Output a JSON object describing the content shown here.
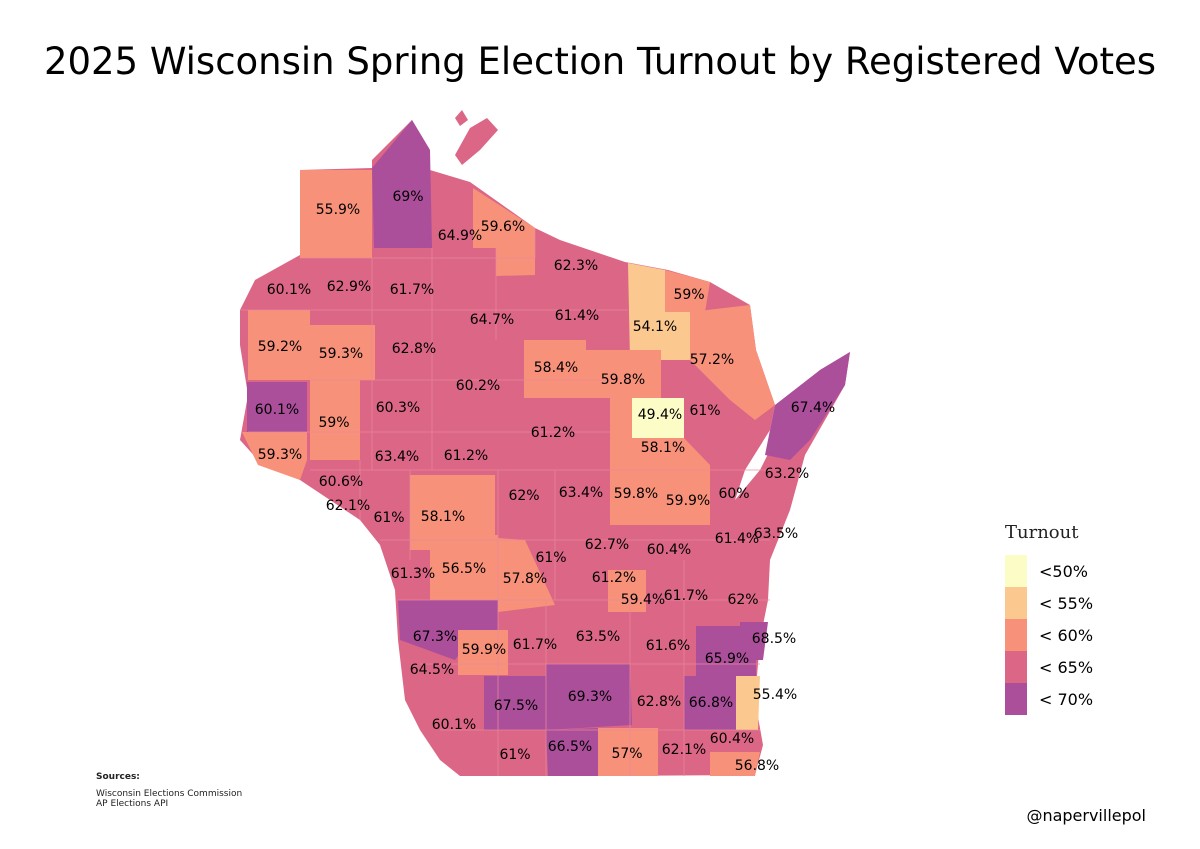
{
  "title": "2025 Wisconsin Spring Election Turnout by Registered Votes",
  "colors": {
    "lt50": "#fcfcc6",
    "lt55": "#fbc98f",
    "lt60": "#f7917a",
    "lt65": "#db6686",
    "lt70": "#ab4f9b"
  },
  "legend": {
    "title": "Turnout",
    "items": [
      {
        "label": "<50%",
        "color": "#fcfcc6"
      },
      {
        "label": "< 55%",
        "color": "#fbc98f"
      },
      {
        "label": "< 60%",
        "color": "#f7917a"
      },
      {
        "label": "< 65%",
        "color": "#db6686"
      },
      {
        "label": "< 70%",
        "color": "#ab4f9b"
      }
    ]
  },
  "counties": [
    {
      "label": "55.9%",
      "value": 55.9
    },
    {
      "label": "69%",
      "value": 69.0
    },
    {
      "label": "64.9%",
      "value": 64.9
    },
    {
      "label": "59.6%",
      "value": 59.6
    },
    {
      "label": "62.3%",
      "value": 62.3
    },
    {
      "label": "60.1%",
      "value": 60.1
    },
    {
      "label": "62.9%",
      "value": 62.9
    },
    {
      "label": "61.7%",
      "value": 61.7
    },
    {
      "label": "64.7%",
      "value": 64.7
    },
    {
      "label": "61.4%",
      "value": 61.4
    },
    {
      "label": "59%",
      "value": 59.0
    },
    {
      "label": "54.1%",
      "value": 54.1
    },
    {
      "label": "59.2%",
      "value": 59.2
    },
    {
      "label": "59.3%",
      "value": 59.3
    },
    {
      "label": "62.8%",
      "value": 62.8
    },
    {
      "label": "58.4%",
      "value": 58.4
    },
    {
      "label": "57.2%",
      "value": 57.2
    },
    {
      "label": "60.2%",
      "value": 60.2
    },
    {
      "label": "59.8%",
      "value": 59.8
    },
    {
      "label": "60.1%",
      "value": 60.1
    },
    {
      "label": "60.3%",
      "value": 60.3
    },
    {
      "label": "49.4%",
      "value": 49.4
    },
    {
      "label": "61%",
      "value": 61.0
    },
    {
      "label": "67.4%",
      "value": 67.4
    },
    {
      "label": "59%",
      "value": 59.0
    },
    {
      "label": "61.2%",
      "value": 61.2
    },
    {
      "label": "58.1%",
      "value": 58.1
    },
    {
      "label": "59.3%",
      "value": 59.3
    },
    {
      "label": "63.4%",
      "value": 63.4
    },
    {
      "label": "61.2%",
      "value": 61.2
    },
    {
      "label": "63.2%",
      "value": 63.2
    },
    {
      "label": "60.6%",
      "value": 60.6
    },
    {
      "label": "62%",
      "value": 62.0
    },
    {
      "label": "63.4%",
      "value": 63.4
    },
    {
      "label": "59.8%",
      "value": 59.8
    },
    {
      "label": "59.9%",
      "value": 59.9
    },
    {
      "label": "60%",
      "value": 60.0
    },
    {
      "label": "62.1%",
      "value": 62.1
    },
    {
      "label": "61%",
      "value": 61.0
    },
    {
      "label": "58.1%",
      "value": 58.1
    },
    {
      "label": "63.5%",
      "value": 63.5
    },
    {
      "label": "61%",
      "value": 61.0
    },
    {
      "label": "62.7%",
      "value": 62.7
    },
    {
      "label": "60.4%",
      "value": 60.4
    },
    {
      "label": "61.4%",
      "value": 61.4
    },
    {
      "label": "61.3%",
      "value": 61.3
    },
    {
      "label": "56.5%",
      "value": 56.5
    },
    {
      "label": "57.8%",
      "value": 57.8
    },
    {
      "label": "61.2%",
      "value": 61.2
    },
    {
      "label": "59.4%",
      "value": 59.4
    },
    {
      "label": "61.7%",
      "value": 61.7
    },
    {
      "label": "62%",
      "value": 62.0
    },
    {
      "label": "67.3%",
      "value": 67.3
    },
    {
      "label": "63.5%",
      "value": 63.5
    },
    {
      "label": "61.6%",
      "value": 61.6
    },
    {
      "label": "68.5%",
      "value": 68.5
    },
    {
      "label": "59.9%",
      "value": 59.9
    },
    {
      "label": "61.7%",
      "value": 61.7
    },
    {
      "label": "65.9%",
      "value": 65.9
    },
    {
      "label": "64.5%",
      "value": 64.5
    },
    {
      "label": "67.5%",
      "value": 67.5
    },
    {
      "label": "69.3%",
      "value": 69.3
    },
    {
      "label": "62.8%",
      "value": 62.8
    },
    {
      "label": "66.8%",
      "value": 66.8
    },
    {
      "label": "55.4%",
      "value": 55.4
    },
    {
      "label": "60.1%",
      "value": 60.1
    },
    {
      "label": "60.4%",
      "value": 60.4
    },
    {
      "label": "61%",
      "value": 61.0
    },
    {
      "label": "66.5%",
      "value": 66.5
    },
    {
      "label": "57%",
      "value": 57.0
    },
    {
      "label": "62.1%",
      "value": 62.1
    },
    {
      "label": "56.8%",
      "value": 56.8
    }
  ],
  "sources": {
    "title": "Sources:",
    "lines": [
      "Wisconsin Elections Commission",
      "AP Elections API"
    ]
  },
  "handle": "@napervillepol"
}
